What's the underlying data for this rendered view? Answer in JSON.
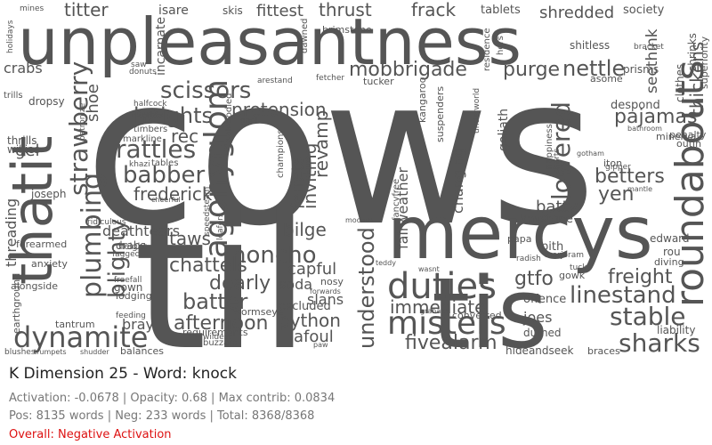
{
  "title": "K Dimension 25 - Word: knock",
  "stats_line": "Activation: -0.0678 | Opacity: 0.68 | Max contrib: 0.0834",
  "counts_line": "Pos: 8135 words | Neg: 233 words | Total: 8368/8368",
  "overall_line": "Overall: Negative Activation",
  "colors": {
    "word": "#555555",
    "overall": "#dd1111"
  },
  "chart_data": {
    "type": "wordcloud",
    "words": [
      "cows",
      "til",
      "unpleasantness",
      "mercys",
      "tis",
      "thatit",
      "dynamite",
      "duties",
      "misters",
      "fivealarm",
      "agonyglom",
      "roundabouts",
      "immediate",
      "linestand",
      "stable",
      "sharks",
      "scissors",
      "mobbrigade",
      "purge",
      "nettle",
      "pretension",
      "heights",
      "rattles",
      "babber",
      "frederick",
      "strawberry",
      "plumbing",
      "blighty",
      "honcho",
      "chattels",
      "taws",
      "deathtears",
      "bilge",
      "capful",
      "dearly",
      "batter",
      "afternoon",
      "python",
      "afoul",
      "understood",
      "lowered",
      "pajamas",
      "betters",
      "yen",
      "gtfo",
      "batty",
      "freight",
      "shoe",
      "crabs",
      "gel",
      "joseph",
      "threading",
      "forearmed",
      "anxiety",
      "alongside",
      "tantrum",
      "earthground",
      "bray",
      "balances",
      "requirements",
      "wormseye",
      "slans",
      "soda",
      "excluded",
      "nosy",
      "converted",
      "joes",
      "durned",
      "hideandseek",
      "braces",
      "liability",
      "penalty",
      "despond",
      "minerva",
      "outin",
      "seethink",
      "thickens",
      "clothes",
      "shrinks",
      "superiority",
      "prisms",
      "society",
      "shredded",
      "tablets",
      "frack",
      "thrust",
      "fittest",
      "skis",
      "isare",
      "titter",
      "mines",
      "holidays",
      "brimstone",
      "dawned",
      "residence",
      "hers",
      "shitless",
      "bracket",
      "ferrets",
      "inviting",
      "revamp",
      "fairweather",
      "changing",
      "goliath",
      "champions",
      "rec",
      "kangaroo",
      "tucker",
      "arestand",
      "fetcher",
      "patronize",
      "timbers",
      "markline",
      "khazi",
      "tables",
      "speedsteam",
      "loafers",
      "abledodied",
      "gaol",
      "keystone",
      "papa",
      "edward",
      "rou",
      "diving",
      "gowk",
      "pith",
      "offence",
      "radish",
      "marjoram",
      "tuck",
      "ridiculous",
      "modern",
      "teddy",
      "wasnt",
      "fancyfree",
      "suspenders",
      "underworld",
      "iton",
      "asome",
      "gipper",
      "mantle",
      "charts",
      "happiness",
      "gotham",
      "bathroom",
      "trills",
      "thrills",
      "willies",
      "dropsy",
      "incarnate",
      "saw",
      "donuts",
      "fagged",
      "drabs",
      "height",
      "gown",
      "lodging",
      "feeding",
      "freefall",
      "buzzard",
      "wildest",
      "shudder",
      "trumpets",
      "blushes",
      "halfcock",
      "cheerful",
      "mudflats",
      "paw",
      "graham",
      "forwards"
    ]
  }
}
